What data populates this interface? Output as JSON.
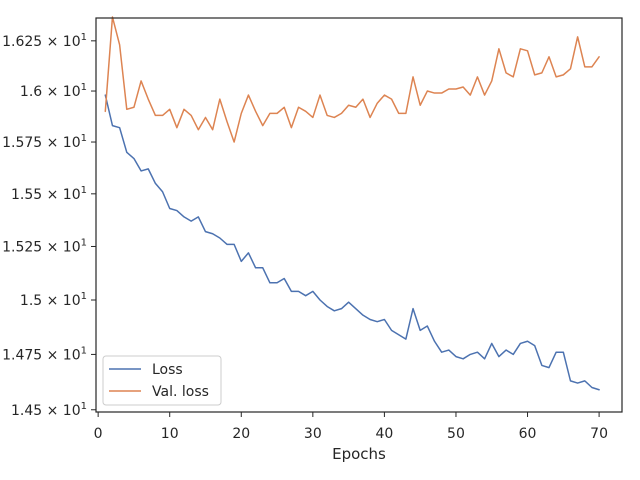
{
  "chart_data": {
    "type": "line",
    "xlabel": "Epochs",
    "ylabel": "",
    "xlim": [
      -0.3,
      73.2
    ],
    "ylim": [
      14.49,
      16.365
    ],
    "yscale": "log",
    "grid": false,
    "legend_position": "lower-left",
    "x_ticks": [
      {
        "value": 0,
        "label": "0"
      },
      {
        "value": 10,
        "label": "10"
      },
      {
        "value": 20,
        "label": "20"
      },
      {
        "value": 30,
        "label": "30"
      },
      {
        "value": 40,
        "label": "40"
      },
      {
        "value": 50,
        "label": "50"
      },
      {
        "value": 60,
        "label": "60"
      },
      {
        "value": 70,
        "label": "70"
      }
    ],
    "y_ticks": [
      {
        "value": 14.5,
        "mantissa": "1.45",
        "exp": "1"
      },
      {
        "value": 14.75,
        "mantissa": "1.475",
        "exp": "1"
      },
      {
        "value": 15.0,
        "mantissa": "1.5",
        "exp": "1"
      },
      {
        "value": 15.25,
        "mantissa": "1.525",
        "exp": "1"
      },
      {
        "value": 15.5,
        "mantissa": "1.55",
        "exp": "1"
      },
      {
        "value": 15.75,
        "mantissa": "1.575",
        "exp": "1"
      },
      {
        "value": 16.0,
        "mantissa": "1.6",
        "exp": "1"
      },
      {
        "value": 16.25,
        "mantissa": "1.625",
        "exp": "1"
      }
    ],
    "x": [
      1,
      2,
      3,
      4,
      5,
      6,
      7,
      8,
      9,
      10,
      11,
      12,
      13,
      14,
      15,
      16,
      17,
      18,
      19,
      20,
      21,
      22,
      23,
      24,
      25,
      26,
      27,
      28,
      29,
      30,
      31,
      32,
      33,
      34,
      35,
      36,
      37,
      38,
      39,
      40,
      41,
      42,
      43,
      44,
      45,
      46,
      47,
      48,
      49,
      50,
      51,
      52,
      53,
      54,
      55,
      56,
      57,
      58,
      59,
      60,
      61,
      62,
      63,
      64,
      65,
      66,
      67,
      68,
      69,
      70
    ],
    "series": [
      {
        "name": "Loss",
        "color": "#4c72b0",
        "values": [
          15.98,
          15.83,
          15.82,
          15.7,
          15.67,
          15.61,
          15.62,
          15.55,
          15.51,
          15.43,
          15.42,
          15.39,
          15.37,
          15.39,
          15.32,
          15.31,
          15.29,
          15.26,
          15.26,
          15.18,
          15.22,
          15.15,
          15.15,
          15.08,
          15.08,
          15.1,
          15.04,
          15.04,
          15.02,
          15.04,
          15.0,
          14.97,
          14.95,
          14.96,
          14.99,
          14.96,
          14.93,
          14.91,
          14.9,
          14.91,
          14.86,
          14.84,
          14.82,
          14.96,
          14.86,
          14.88,
          14.81,
          14.76,
          14.77,
          14.74,
          14.73,
          14.75,
          14.76,
          14.73,
          14.8,
          14.74,
          14.77,
          14.75,
          14.8,
          14.81,
          14.79,
          14.7,
          14.69,
          14.76,
          14.76,
          14.63,
          14.62,
          14.63,
          14.6,
          14.59
        ]
      },
      {
        "name": "Val. loss",
        "color": "#dd8452",
        "values": [
          15.9,
          16.37,
          16.23,
          15.91,
          15.92,
          16.05,
          15.96,
          15.88,
          15.88,
          15.91,
          15.82,
          15.91,
          15.88,
          15.81,
          15.87,
          15.81,
          15.96,
          15.85,
          15.75,
          15.89,
          15.98,
          15.9,
          15.83,
          15.89,
          15.89,
          15.92,
          15.82,
          15.92,
          15.9,
          15.87,
          15.98,
          15.88,
          15.87,
          15.89,
          15.93,
          15.92,
          15.96,
          15.87,
          15.94,
          15.98,
          15.96,
          15.89,
          15.89,
          16.07,
          15.93,
          16.0,
          15.99,
          15.99,
          16.01,
          16.01,
          16.02,
          15.98,
          16.07,
          15.98,
          16.05,
          16.21,
          16.09,
          16.07,
          16.21,
          16.2,
          16.08,
          16.09,
          16.17,
          16.07,
          16.08,
          16.11,
          16.27,
          16.12,
          16.12,
          16.17
        ]
      }
    ]
  }
}
